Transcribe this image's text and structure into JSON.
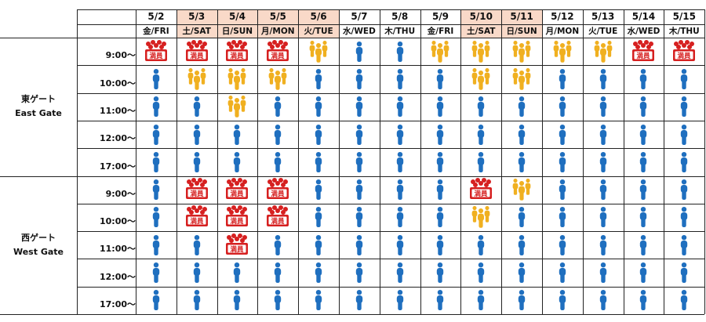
{
  "colors": {
    "header_highlight": "#f9d9c8",
    "low": "#1f6fbf",
    "medium": "#f0b020",
    "full": "#d62020",
    "grid": "#222222"
  },
  "status_legend": {
    "low": "person-icon",
    "medium": "group-icon",
    "full": "full-crowd-icon"
  },
  "full_badge_text": "満員",
  "dates": [
    {
      "date": "5/2",
      "dow": "金/FRI",
      "highlight": false
    },
    {
      "date": "5/3",
      "dow": "土/SAT",
      "highlight": true
    },
    {
      "date": "5/4",
      "dow": "日/SUN",
      "highlight": true
    },
    {
      "date": "5/5",
      "dow": "月/MON",
      "highlight": true
    },
    {
      "date": "5/6",
      "dow": "火/TUE",
      "highlight": true
    },
    {
      "date": "5/7",
      "dow": "水/WED",
      "highlight": false
    },
    {
      "date": "5/8",
      "dow": "木/THU",
      "highlight": false
    },
    {
      "date": "5/9",
      "dow": "金/FRI",
      "highlight": false
    },
    {
      "date": "5/10",
      "dow": "土/SAT",
      "highlight": true
    },
    {
      "date": "5/11",
      "dow": "日/SUN",
      "highlight": true
    },
    {
      "date": "5/12",
      "dow": "月/MON",
      "highlight": false
    },
    {
      "date": "5/13",
      "dow": "火/TUE",
      "highlight": false
    },
    {
      "date": "5/14",
      "dow": "水/WED",
      "highlight": false
    },
    {
      "date": "5/15",
      "dow": "木/THU",
      "highlight": false
    }
  ],
  "gates": [
    {
      "name_ja": "東ゲート",
      "name_en": "East Gate",
      "times": [
        "9:00～",
        "10:00～",
        "11:00～",
        "12:00～",
        "17:00～"
      ],
      "status": [
        [
          "full",
          "full",
          "full",
          "full",
          "medium",
          "low",
          "low",
          "medium",
          "medium",
          "medium",
          "medium",
          "medium",
          "full",
          "full"
        ],
        [
          "low",
          "medium",
          "medium",
          "medium",
          "low",
          "low",
          "low",
          "low",
          "medium",
          "medium",
          "low",
          "low",
          "low",
          "low"
        ],
        [
          "low",
          "low",
          "medium",
          "low",
          "low",
          "low",
          "low",
          "low",
          "low",
          "low",
          "low",
          "low",
          "low",
          "low"
        ],
        [
          "low",
          "low",
          "low",
          "low",
          "low",
          "low",
          "low",
          "low",
          "low",
          "low",
          "low",
          "low",
          "low",
          "low"
        ],
        [
          "low",
          "low",
          "low",
          "low",
          "low",
          "low",
          "low",
          "low",
          "low",
          "low",
          "low",
          "low",
          "low",
          "low"
        ]
      ]
    },
    {
      "name_ja": "西ゲート",
      "name_en": "West Gate",
      "times": [
        "9:00～",
        "10:00～",
        "11:00～",
        "12:00～",
        "17:00～"
      ],
      "status": [
        [
          "low",
          "full",
          "full",
          "full",
          "low",
          "low",
          "low",
          "low",
          "full",
          "medium",
          "low",
          "low",
          "low",
          "low"
        ],
        [
          "low",
          "full",
          "full",
          "full",
          "low",
          "low",
          "low",
          "low",
          "medium",
          "low",
          "low",
          "low",
          "low",
          "low"
        ],
        [
          "low",
          "low",
          "full",
          "low",
          "low",
          "low",
          "low",
          "low",
          "low",
          "low",
          "low",
          "low",
          "low",
          "low"
        ],
        [
          "low",
          "low",
          "low",
          "low",
          "low",
          "low",
          "low",
          "low",
          "low",
          "low",
          "low",
          "low",
          "low",
          "low"
        ],
        [
          "low",
          "low",
          "low",
          "low",
          "low",
          "low",
          "low",
          "low",
          "low",
          "low",
          "low",
          "low",
          "low",
          "low"
        ]
      ]
    }
  ]
}
